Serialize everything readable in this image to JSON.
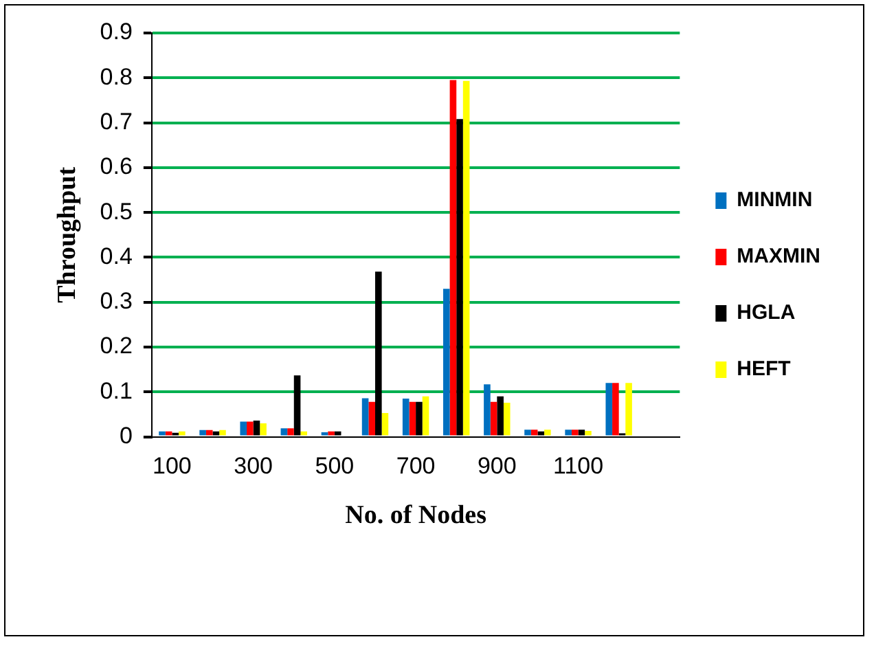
{
  "chart_data": {
    "type": "bar",
    "xlabel": "No. of Nodes",
    "ylabel": "Throughput",
    "categories": [
      "100",
      null,
      "300",
      null,
      "500",
      null,
      "700",
      null,
      "900",
      null,
      "1100",
      null,
      null
    ],
    "series": [
      {
        "name": "MINMIN",
        "color": "#0070c0",
        "values": [
          0.012,
          0.015,
          0.034,
          0.019,
          0.01,
          0.086,
          0.085,
          0.33,
          0.117,
          0.016,
          0.016,
          0.12,
          null
        ]
      },
      {
        "name": "MAXMIN",
        "color": "#ff0000",
        "values": [
          0.012,
          0.015,
          0.034,
          0.019,
          0.012,
          0.078,
          0.078,
          0.795,
          0.078,
          0.016,
          0.016,
          0.12,
          null
        ]
      },
      {
        "name": "HGLA",
        "color": "#000000",
        "values": [
          0.009,
          0.012,
          0.036,
          0.137,
          0.012,
          0.368,
          0.078,
          0.708,
          0.09,
          0.012,
          0.016,
          0.008,
          null
        ]
      },
      {
        "name": "HEFT",
        "color": "#ffff00",
        "values": [
          0.012,
          0.015,
          0.03,
          0.012,
          0,
          0.053,
          0.09,
          0.793,
          0.076,
          0.016,
          0.013,
          0.12,
          null
        ]
      }
    ],
    "ylim": [
      0,
      0.9
    ],
    "yticks": [
      0,
      0.1,
      0.2,
      0.3,
      0.4,
      0.5,
      0.6,
      0.7,
      0.8,
      0.9
    ],
    "grid": "y",
    "legend": "right"
  }
}
